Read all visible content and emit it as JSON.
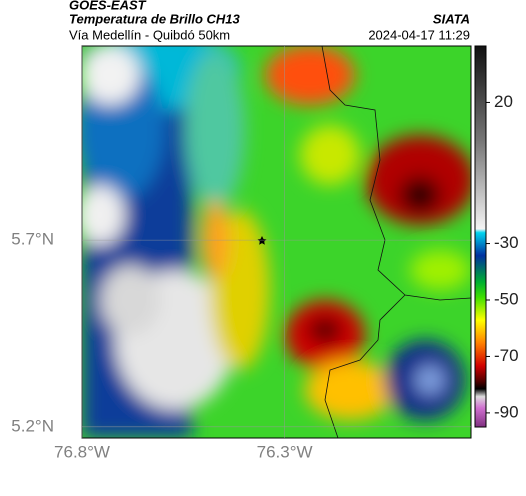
{
  "header": {
    "satellite": "GOES-EAST",
    "product": "Temperatura de Brillo CH13",
    "region": "Vía Medellín - Quibdó 50km",
    "source": "SIATA",
    "datetime": "2024-04-17 11:29"
  },
  "map": {
    "lat_lim": [
      5.17,
      6.22
    ],
    "lon_lim": [
      -76.8,
      -75.84
    ],
    "lat_ticks": [
      {
        "value": 5.7,
        "label": "5.7°N"
      },
      {
        "value": 5.2,
        "label": "5.2°N"
      }
    ],
    "lon_ticks": [
      {
        "value": -76.8,
        "label": "76.8°W"
      },
      {
        "value": -76.3,
        "label": "76.3°W"
      }
    ],
    "colorbar": {
      "lim": [
        -95,
        40
      ],
      "ticks": [
        20,
        -30,
        -50,
        -70,
        -90
      ]
    }
  }
}
